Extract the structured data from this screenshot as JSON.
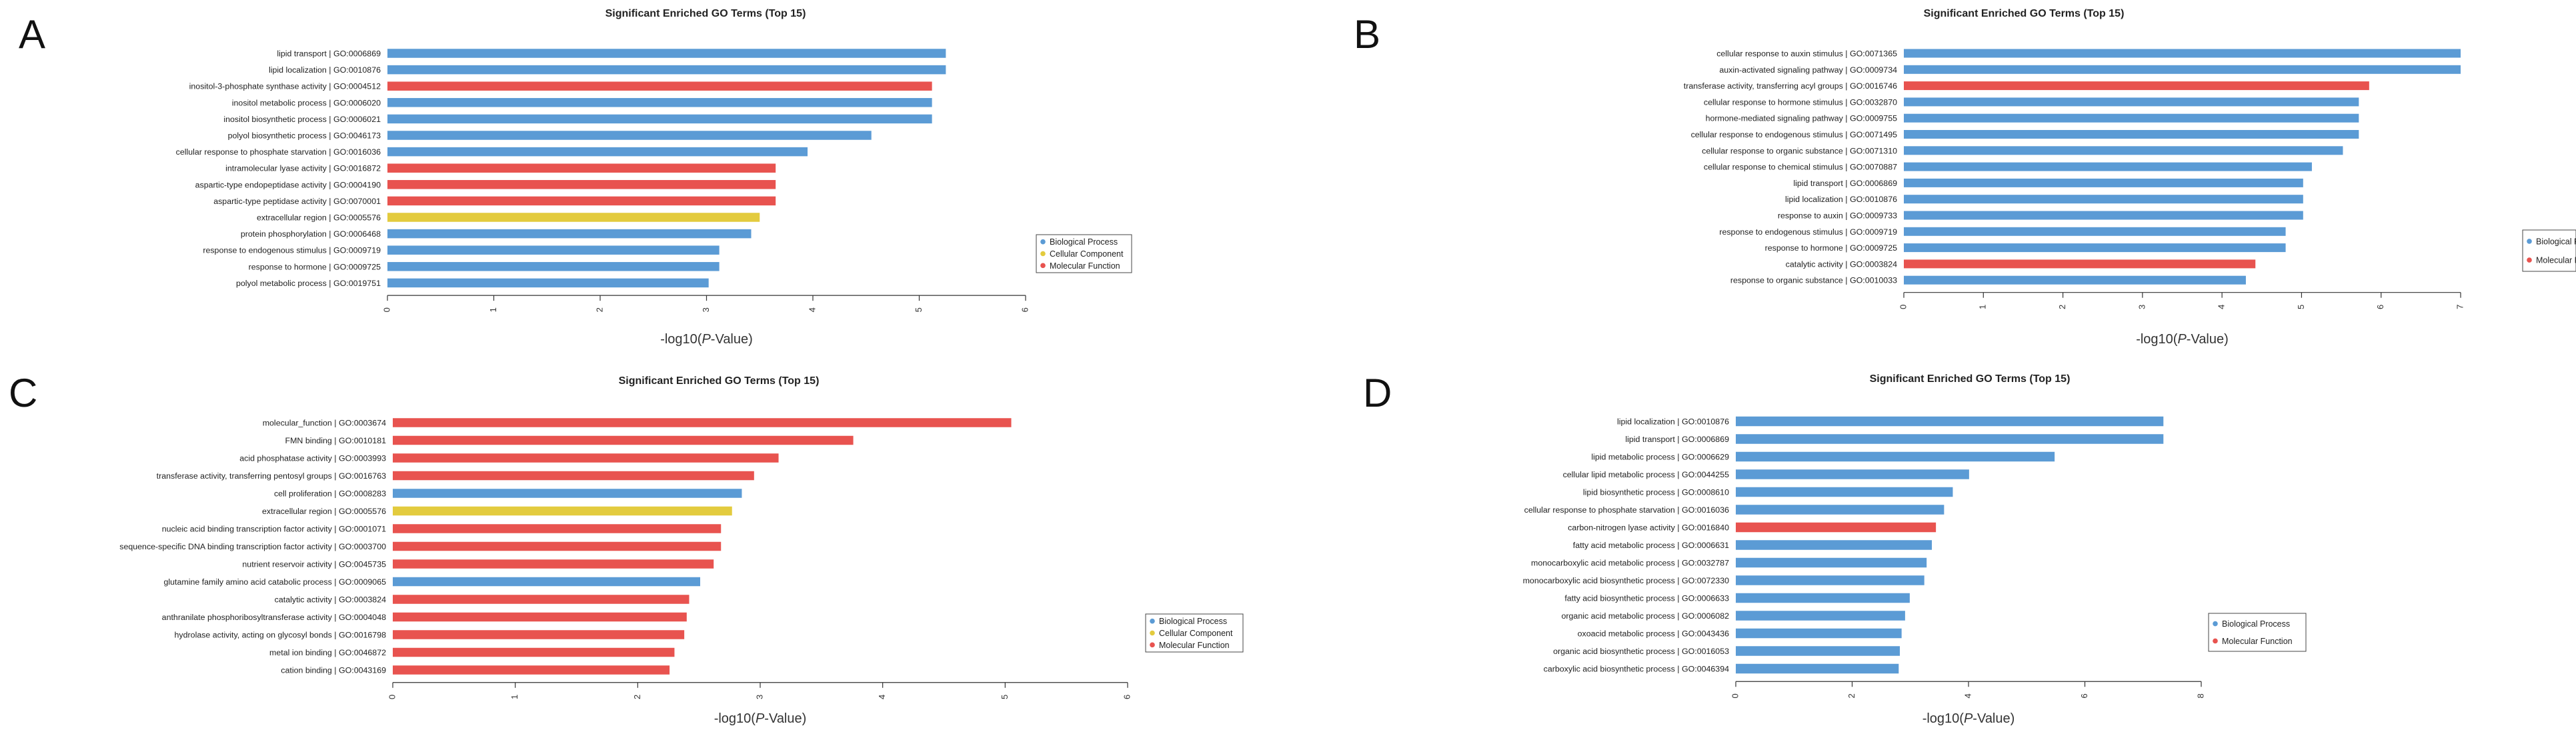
{
  "figure": {
    "panel_letters": [
      "A",
      "B",
      "C",
      "D"
    ]
  },
  "colors": {
    "Biological Process": "#5b9bd5",
    "Cellular Component": "#e3cb3e",
    "Molecular Function": "#e8534f"
  },
  "chart_data": [
    {
      "panel": "A",
      "type": "bar",
      "orientation": "horizontal",
      "title": "Significant Enriched GO Terms (Top 15)",
      "xlabel_prefix": "-log10(",
      "xlabel_italic": "P",
      "xlabel_suffix": "-Value)",
      "xlim": [
        0,
        6
      ],
      "xticks": [
        0,
        1,
        2,
        3,
        4,
        5,
        6
      ],
      "legend_position": "right",
      "legend": [
        "Biological Process",
        "Cellular Component",
        "Molecular Function"
      ],
      "categories": [
        "lipid transport | GO:0006869",
        "lipid localization | GO:0010876",
        "inositol-3-phosphate synthase activity | GO:0004512",
        "inositol metabolic process | GO:0006020",
        "inositol biosynthetic process | GO:0006021",
        "polyol biosynthetic process | GO:0046173",
        "cellular response to phosphate starvation | GO:0016036",
        "intramolecular lyase activity | GO:0016872",
        "aspartic-type endopeptidase activity | GO:0004190",
        "aspartic-type peptidase activity | GO:0070001",
        "extracellular region | GO:0005576",
        "protein phosphorylation | GO:0006468",
        "response to endogenous stimulus | GO:0009719",
        "response to hormone | GO:0009725",
        "polyol metabolic process | GO:0019751"
      ],
      "values": [
        5.25,
        5.25,
        5.12,
        5.12,
        5.12,
        4.55,
        3.95,
        3.65,
        3.65,
        3.65,
        3.5,
        3.42,
        3.12,
        3.12,
        3.02
      ],
      "groups": [
        "Biological Process",
        "Biological Process",
        "Molecular Function",
        "Biological Process",
        "Biological Process",
        "Biological Process",
        "Biological Process",
        "Molecular Function",
        "Molecular Function",
        "Molecular Function",
        "Cellular Component",
        "Biological Process",
        "Biological Process",
        "Biological Process",
        "Biological Process"
      ]
    },
    {
      "panel": "B",
      "type": "bar",
      "orientation": "horizontal",
      "title": "Significant Enriched GO Terms (Top 15)",
      "xlabel_prefix": "-log10(",
      "xlabel_italic": "P",
      "xlabel_suffix": "-Value)",
      "xlim": [
        0,
        7
      ],
      "xticks": [
        0,
        1,
        2,
        3,
        4,
        5,
        6,
        7
      ],
      "legend_position": "right",
      "legend": [
        "Biological Process",
        "Molecular Function"
      ],
      "categories": [
        "cellular response to auxin stimulus | GO:0071365",
        "auxin-activated signaling pathway | GO:0009734",
        "transferase activity, transferring acyl groups | GO:0016746",
        "cellular response to hormone stimulus | GO:0032870",
        "hormone-mediated signaling pathway | GO:0009755",
        "cellular response to endogenous stimulus | GO:0071495",
        "cellular response to organic substance | GO:0071310",
        "cellular response to chemical stimulus | GO:0070887",
        "lipid transport | GO:0006869",
        "lipid localization | GO:0010876",
        "response to auxin | GO:0009733",
        "response to endogenous stimulus | GO:0009719",
        "response to hormone | GO:0009725",
        "catalytic activity | GO:0003824",
        "response to organic substance | GO:0010033"
      ],
      "values": [
        7.0,
        7.0,
        5.85,
        5.72,
        5.72,
        5.72,
        5.52,
        5.13,
        5.02,
        5.02,
        5.02,
        4.8,
        4.8,
        4.42,
        4.3
      ],
      "groups": [
        "Biological Process",
        "Biological Process",
        "Molecular Function",
        "Biological Process",
        "Biological Process",
        "Biological Process",
        "Biological Process",
        "Biological Process",
        "Biological Process",
        "Biological Process",
        "Biological Process",
        "Biological Process",
        "Biological Process",
        "Molecular Function",
        "Biological Process"
      ]
    },
    {
      "panel": "C",
      "type": "bar",
      "orientation": "horizontal",
      "title": "Significant Enriched GO Terms (Top 15)",
      "xlabel_prefix": "-log10(",
      "xlabel_italic": "P",
      "xlabel_suffix": "-Value)",
      "xlim": [
        0,
        6
      ],
      "xticks": [
        0,
        1,
        2,
        3,
        4,
        5,
        6
      ],
      "legend_position": "right",
      "legend": [
        "Biological Process",
        "Cellular Component",
        "Molecular Function"
      ],
      "categories": [
        "molecular_function | GO:0003674",
        "FMN binding | GO:0010181",
        "acid phosphatase activity | GO:0003993",
        "transferase activity, transferring pentosyl groups | GO:0016763",
        "cell proliferation | GO:0008283",
        "extracellular region | GO:0005576",
        "nucleic acid binding transcription factor activity | GO:0001071",
        "sequence-specific DNA binding transcription factor activity | GO:0003700",
        "nutrient reservoir activity | GO:0045735",
        "glutamine family amino acid catabolic process | GO:0009065",
        "catalytic activity | GO:0003824",
        "anthranilate phosphoribosyltransferase activity | GO:0004048",
        "hydrolase activity, acting on glycosyl bonds | GO:0016798",
        "metal ion binding | GO:0046872",
        "cation binding | GO:0043169"
      ],
      "values": [
        5.05,
        3.76,
        3.15,
        2.95,
        2.85,
        2.77,
        2.68,
        2.68,
        2.62,
        2.51,
        2.42,
        2.4,
        2.38,
        2.3,
        2.26
      ],
      "groups": [
        "Molecular Function",
        "Molecular Function",
        "Molecular Function",
        "Molecular Function",
        "Biological Process",
        "Cellular Component",
        "Molecular Function",
        "Molecular Function",
        "Molecular Function",
        "Biological Process",
        "Molecular Function",
        "Molecular Function",
        "Molecular Function",
        "Molecular Function",
        "Molecular Function"
      ]
    },
    {
      "panel": "D",
      "type": "bar",
      "orientation": "horizontal",
      "title": "Significant Enriched GO Terms (Top 15)",
      "xlabel_prefix": "-log10(",
      "xlabel_italic": "P",
      "xlabel_suffix": "-Value)",
      "xlim": [
        0,
        8
      ],
      "xticks": [
        0,
        2,
        4,
        6,
        8
      ],
      "legend_position": "right",
      "legend": [
        "Biological Process",
        "Molecular Function"
      ],
      "categories": [
        "lipid localization | GO:0010876",
        "lipid transport | GO:0006869",
        "lipid metabolic process | GO:0006629",
        "cellular lipid metabolic process | GO:0044255",
        "lipid biosynthetic process | GO:0008610",
        "cellular response to phosphate starvation | GO:0016036",
        "carbon-nitrogen lyase activity | GO:0016840",
        "fatty acid metabolic process | GO:0006631",
        "monocarboxylic acid metabolic process | GO:0032787",
        "monocarboxylic acid biosynthetic process | GO:0072330",
        "fatty acid biosynthetic process | GO:0006633",
        "organic acid metabolic process | GO:0006082",
        "oxoacid metabolic process | GO:0043436",
        "organic acid biosynthetic process | GO:0016053",
        "carboxylic acid biosynthetic process | GO:0046394"
      ],
      "values": [
        7.35,
        7.35,
        5.48,
        4.01,
        3.73,
        3.58,
        3.44,
        3.37,
        3.28,
        3.24,
        2.99,
        2.91,
        2.85,
        2.82,
        2.8
      ],
      "groups": [
        "Biological Process",
        "Biological Process",
        "Biological Process",
        "Biological Process",
        "Biological Process",
        "Biological Process",
        "Molecular Function",
        "Biological Process",
        "Biological Process",
        "Biological Process",
        "Biological Process",
        "Biological Process",
        "Biological Process",
        "Biological Process",
        "Biological Process"
      ]
    }
  ]
}
